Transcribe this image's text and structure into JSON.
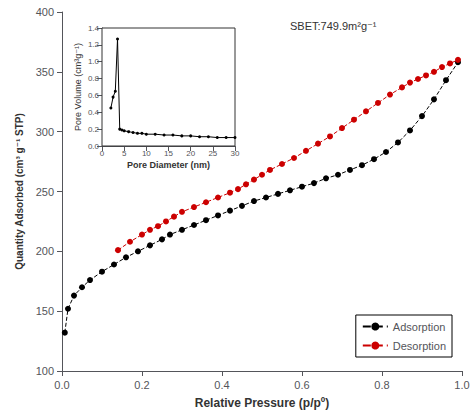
{
  "chart_data": [
    {
      "type": "line",
      "xlabel": "Relative Pressure (p/pº)",
      "ylabel": "Quantity Adsorbed (cm³ g⁻¹ STP)",
      "annotation": "SBET:749.9m²g⁻¹",
      "series": [
        {
          "name": "Adsorption",
          "color": "#000000",
          "marker": "o",
          "line_style": "dashed",
          "x": [
            0.007,
            0.015,
            0.03,
            0.05,
            0.07,
            0.1,
            0.13,
            0.16,
            0.19,
            0.22,
            0.25,
            0.27,
            0.3,
            0.33,
            0.36,
            0.39,
            0.42,
            0.45,
            0.48,
            0.51,
            0.54,
            0.57,
            0.6,
            0.63,
            0.66,
            0.69,
            0.72,
            0.75,
            0.78,
            0.81,
            0.84,
            0.87,
            0.9,
            0.93,
            0.96,
            0.99
          ],
          "values": [
            132,
            152,
            163,
            170,
            176,
            183,
            189,
            195,
            200,
            205,
            210,
            214,
            218,
            222,
            226,
            230,
            234,
            238,
            242,
            245,
            248,
            251,
            254,
            257,
            261,
            264,
            268,
            272,
            277,
            283,
            291,
            301,
            313,
            327,
            343,
            358
          ]
        },
        {
          "name": "Desorption",
          "color": "#cc0000",
          "marker": "o",
          "line_style": "dashed",
          "x": [
            0.14,
            0.17,
            0.2,
            0.22,
            0.24,
            0.26,
            0.28,
            0.3,
            0.33,
            0.36,
            0.39,
            0.42,
            0.44,
            0.46,
            0.48,
            0.5,
            0.52,
            0.55,
            0.58,
            0.61,
            0.64,
            0.67,
            0.7,
            0.73,
            0.76,
            0.79,
            0.82,
            0.85,
            0.87,
            0.89,
            0.91,
            0.93,
            0.95,
            0.97,
            0.99
          ],
          "values": [
            201,
            208,
            214,
            218,
            221,
            225,
            229,
            233,
            237,
            241,
            245,
            249,
            252,
            256,
            260,
            264,
            268,
            273,
            278,
            284,
            290,
            296,
            303,
            310,
            317,
            324,
            331,
            337,
            341,
            344,
            347,
            350,
            354,
            357,
            360
          ]
        }
      ],
      "xlim": [
        0.0,
        1.0
      ],
      "ylim": [
        100,
        400
      ],
      "xticks": [
        {
          "value": 0,
          "label": "0.0"
        },
        0.2,
        0.4,
        0.6,
        0.8,
        {
          "value": 1,
          "label": "1.0"
        }
      ],
      "yticks": [
        100,
        150,
        200,
        250,
        300,
        350,
        400
      ],
      "legend": "lower right",
      "grid": false
    },
    {
      "type": "line",
      "xlabel": "Pore Diameter (nm)",
      "ylabel": "Pore Volume (cm³g⁻¹)",
      "x": [
        2.0,
        2.5,
        3.0,
        3.5,
        4.0,
        4.5,
        5.0,
        6.0,
        7.0,
        8.0,
        9.0,
        10.0,
        12.0,
        14.0,
        16.0,
        18.0,
        20.0,
        22.0,
        24.0,
        26.0,
        28.0,
        30.0
      ],
      "values": [
        0.45,
        0.58,
        0.65,
        1.27,
        0.2,
        0.19,
        0.18,
        0.17,
        0.16,
        0.15,
        0.15,
        0.14,
        0.14,
        0.13,
        0.13,
        0.12,
        0.12,
        0.11,
        0.11,
        0.1,
        0.1,
        0.1
      ],
      "color": "#000000",
      "marker": "o",
      "line_style": "solid",
      "xlim": [
        0,
        30
      ],
      "ylim": [
        0.0,
        1.4
      ],
      "xticks": [
        0,
        5,
        10,
        15,
        20,
        25,
        30
      ],
      "yticks": [
        {
          "value": 0,
          "label": "0.0"
        },
        0.2,
        0.4,
        0.6,
        0.8,
        {
          "value": 1,
          "label": "1.0"
        },
        1.2,
        1.4
      ],
      "grid": false
    }
  ]
}
